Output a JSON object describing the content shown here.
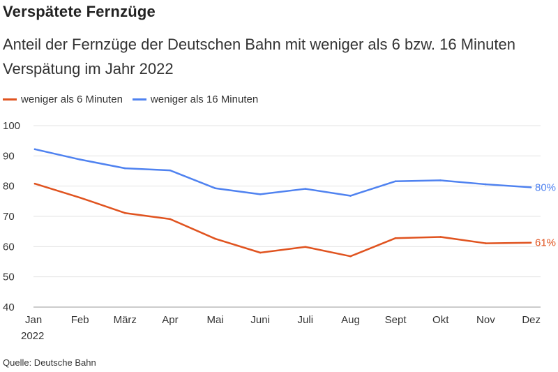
{
  "chart_data": {
    "type": "line",
    "title": "Verspätete Fernzüge",
    "subtitle": "Anteil der Fernzüge der Deutschen Bahn mit weniger als 6 bzw. 16 Minuten Verspätung im Jahr 2022",
    "categories": [
      "Jan",
      "Feb",
      "März",
      "Apr",
      "Mai",
      "Juni",
      "Juli",
      "Aug",
      "Sept",
      "Okt",
      "Nov",
      "Dez"
    ],
    "x_sublabel": "2022",
    "yticks": [
      40,
      50,
      60,
      70,
      80,
      90,
      100
    ],
    "ylim": [
      40,
      100
    ],
    "grid": true,
    "legend_position": "top-left",
    "series": [
      {
        "name": "weniger als 6 Minuten",
        "color": "#e0531f",
        "end_label": "61%",
        "values": [
          80.8,
          76.2,
          71.1,
          69.1,
          62.6,
          58.0,
          59.9,
          56.8,
          62.8,
          63.2,
          61.1,
          61.3
        ]
      },
      {
        "name": "weniger als 16 Minuten",
        "color": "#4f82f0",
        "end_label": "80%",
        "values": [
          92.2,
          88.8,
          85.9,
          85.2,
          79.3,
          77.3,
          79.1,
          76.8,
          81.6,
          81.9,
          80.6,
          79.6
        ]
      }
    ]
  },
  "source": "Quelle: Deutsche Bahn"
}
